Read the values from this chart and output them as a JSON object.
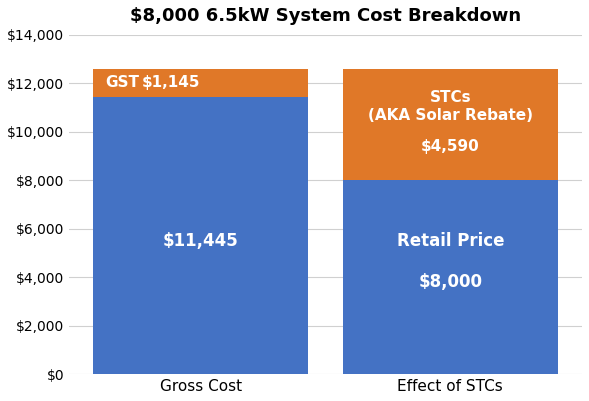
{
  "title": "$8,000 6.5kW System Cost Breakdown",
  "categories": [
    "Gross Cost",
    "Effect of STCs"
  ],
  "blue_values": [
    11445,
    8000
  ],
  "orange_values": [
    1145,
    4590
  ],
  "blue_color": "#4472C4",
  "orange_color": "#E07828",
  "background_color": "#FFFFFF",
  "grid_color": "#D0D0D0",
  "ylim": [
    0,
    14000
  ],
  "yticks": [
    0,
    2000,
    4000,
    6000,
    8000,
    10000,
    12000,
    14000
  ],
  "bar_width": 0.62,
  "x_positions": [
    0.28,
    1.0
  ],
  "figsize": [
    5.89,
    4.01
  ],
  "dpi": 100
}
